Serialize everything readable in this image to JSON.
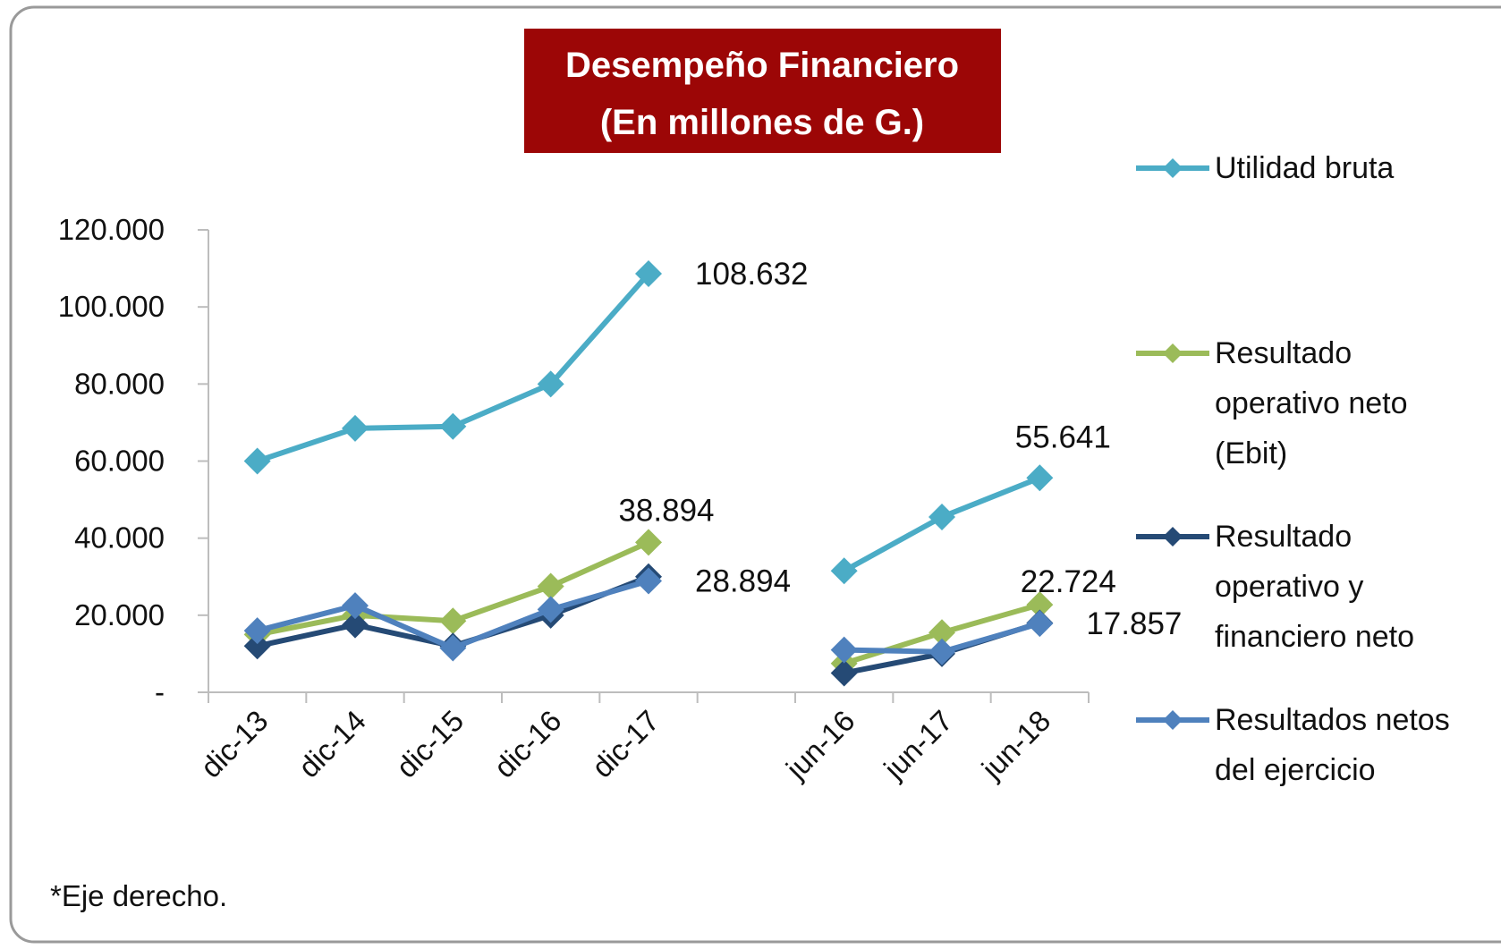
{
  "chart_data": {
    "type": "line",
    "title": "Desempeño Financiero",
    "subtitle": "(En millones de G.)",
    "footnote": "*Eje derecho.",
    "categories": [
      "dic-13",
      "dic-14",
      "dic-15",
      "dic-16",
      "dic-17",
      null,
      "jun-16",
      "jun-17",
      "jun-18"
    ],
    "ylim": [
      0,
      120000
    ],
    "yticks": [
      {
        "value": 0,
        "label": "-"
      },
      {
        "value": 20000,
        "label": "20.000"
      },
      {
        "value": 40000,
        "label": "40.000"
      },
      {
        "value": 60000,
        "label": "60.000"
      },
      {
        "value": 80000,
        "label": "80.000"
      },
      {
        "value": 100000,
        "label": "100.000"
      },
      {
        "value": 120000,
        "label": "120.000"
      }
    ],
    "grid": false,
    "legend": "right",
    "series": [
      {
        "name": "Utilidad bruta",
        "color": "#4bacc6",
        "values": [
          60000,
          68500,
          69000,
          80000,
          108632,
          null,
          31500,
          45500,
          55641
        ],
        "value_labels": [
          null,
          null,
          null,
          null,
          "108.632",
          null,
          null,
          null,
          "55.641"
        ]
      },
      {
        "name": "Resultado operativo neto (Ebit)",
        "color": "#9bbb59",
        "values": [
          15000,
          20000,
          18500,
          27500,
          38894,
          null,
          7500,
          15500,
          22724
        ],
        "value_labels": [
          null,
          null,
          null,
          null,
          "38.894",
          null,
          null,
          null,
          "22.724"
        ]
      },
      {
        "name": "Resultado operativo y financiero neto",
        "color": "#254a75",
        "values": [
          12000,
          17500,
          12000,
          20000,
          30000,
          null,
          5000,
          10000,
          18000
        ]
      },
      {
        "name": "Resultados netos del ejercicio",
        "color": "#4f81bd",
        "values": [
          16000,
          22500,
          11500,
          21500,
          28894,
          null,
          11000,
          10500,
          17857
        ],
        "value_labels": [
          null,
          null,
          null,
          null,
          "28.894",
          null,
          null,
          null,
          "17.857"
        ]
      }
    ]
  }
}
